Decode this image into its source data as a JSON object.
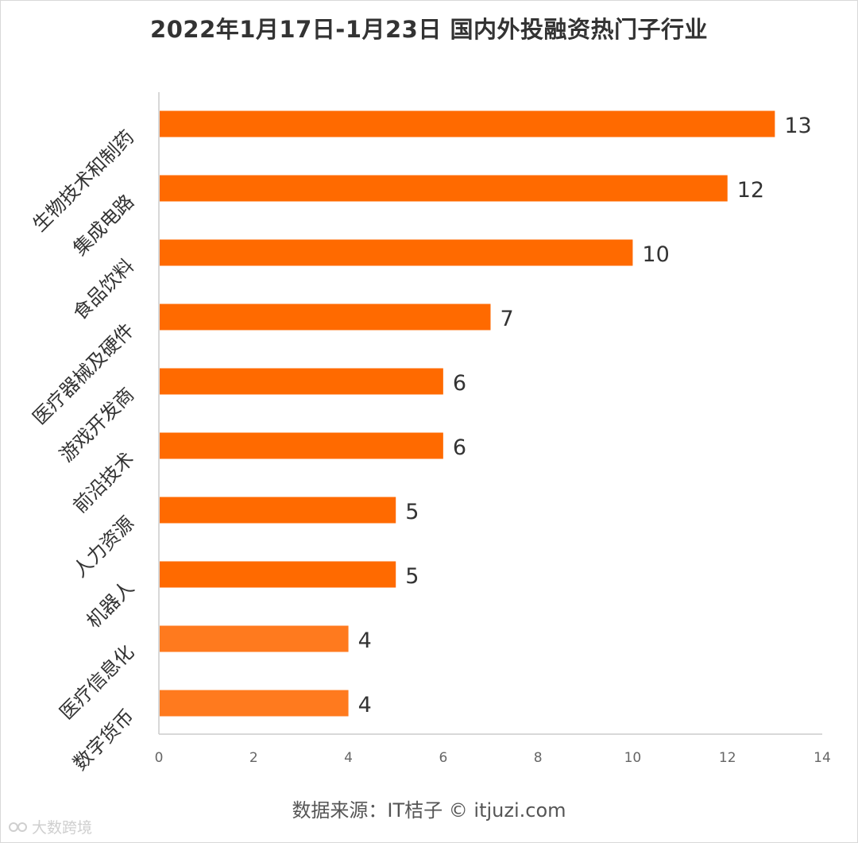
{
  "colors": {
    "bar": "#FF6A00",
    "bar_light": "#FF7A1E",
    "axis": "#cccccc",
    "tick_text": "#666666",
    "label_text": "#333333",
    "value_text": "#333333"
  },
  "source_note": "数据来源：IT桔子 © itjuzi.com",
  "watermark": {
    "corner_text": "大数跨境"
  },
  "chart_data": {
    "type": "bar",
    "orientation": "horizontal",
    "title": "2022年1月17日-1月23日 国内外投融资热门子行业",
    "categories": [
      "生物技术和制药",
      "集成电路",
      "食品饮料",
      "医疗器械及硬件",
      "游戏开发商",
      "前沿技术",
      "人力资源",
      "机器人",
      "医疗信息化",
      "数字货币"
    ],
    "values": [
      13,
      12,
      10,
      7,
      6,
      6,
      5,
      5,
      4,
      4
    ],
    "xlim": [
      0,
      14
    ],
    "xticks": [
      0,
      2,
      4,
      6,
      8,
      10,
      12,
      14
    ],
    "xlabel": "",
    "ylabel": "",
    "grid": false,
    "data_labels": true
  }
}
